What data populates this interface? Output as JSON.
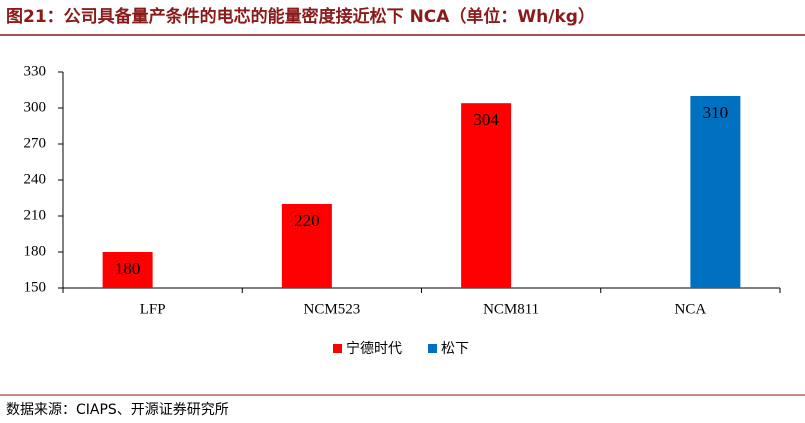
{
  "chart_data": {
    "type": "bar",
    "title": "图21：公司具备量产条件的电芯的能量密度接近松下 NCA（单位：Wh/kg）",
    "categories": [
      "LFP",
      "NCM523",
      "NCM811",
      "NCA"
    ],
    "series": [
      {
        "name": "宁德时代",
        "color": "#ff0000",
        "values": [
          180,
          220,
          304,
          null
        ]
      },
      {
        "name": "松下",
        "color": "#0070c0",
        "values": [
          null,
          null,
          null,
          310
        ]
      }
    ],
    "ylim": [
      150,
      330
    ],
    "yticks": [
      150,
      180,
      210,
      240,
      270,
      300,
      330
    ],
    "grid": false,
    "legend": "bottom",
    "source": "数据来源：CIAPS、开源证券研究所"
  }
}
